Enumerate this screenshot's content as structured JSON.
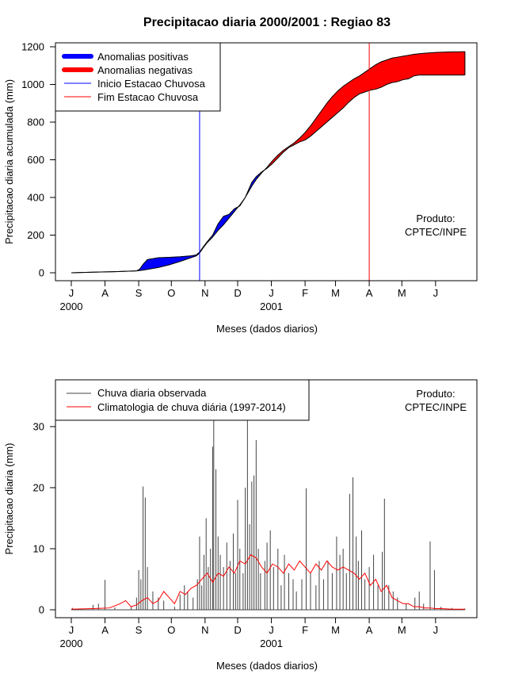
{
  "chart_data": [
    {
      "type": "area",
      "title": "Precipitacao diaria 2000/2001 : Regiao 83",
      "xlabel": "Meses (dados diarios)",
      "ylabel": "Precipitacao diaria acumulada (mm)",
      "xlim": [
        0,
        365
      ],
      "ylim": [
        0,
        1200
      ],
      "yticks": [
        0,
        200,
        400,
        600,
        800,
        1000,
        1200
      ],
      "month_ticks": [
        {
          "label": "J",
          "day": 0
        },
        {
          "label": "A",
          "day": 31
        },
        {
          "label": "S",
          "day": 62
        },
        {
          "label": "O",
          "day": 92
        },
        {
          "label": "N",
          "day": 123
        },
        {
          "label": "D",
          "day": 153
        },
        {
          "label": "J",
          "day": 184
        },
        {
          "label": "F",
          "day": 215
        },
        {
          "label": "M",
          "day": 243
        },
        {
          "label": "A",
          "day": 274
        },
        {
          "label": "M",
          "day": 304
        },
        {
          "label": "J",
          "day": 335
        }
      ],
      "year_labels": [
        {
          "label": "2000",
          "day": 0
        },
        {
          "label": "2001",
          "day": 184
        }
      ],
      "legend": [
        {
          "label": "Anomalias positivas",
          "color": "#0000ff",
          "style": "thick"
        },
        {
          "label": "Anomalias negativas",
          "color": "#ff0000",
          "style": "thick"
        },
        {
          "label": "Inicio Estacao Chuvosa",
          "color": "#0000ff",
          "style": "thin"
        },
        {
          "label": "Fim Estacao Chuvosa",
          "color": "#ff0000",
          "style": "thin"
        }
      ],
      "annotation": [
        "Produto:",
        "CPTEC/INPE"
      ],
      "rainy_season_start_day": 118,
      "rainy_season_end_day": 274,
      "observed_cumulative": {
        "days": [
          0,
          20,
          40,
          60,
          63,
          66,
          70,
          80,
          90,
          100,
          110,
          115,
          118,
          121,
          125,
          130,
          135,
          140,
          145,
          150,
          155,
          160,
          163,
          166,
          170,
          175,
          180,
          185,
          190,
          195,
          200,
          205,
          210,
          215,
          220,
          225,
          230,
          235,
          240,
          245,
          250,
          255,
          260,
          265,
          270,
          275,
          280,
          285,
          290,
          295,
          300,
          305,
          310,
          315,
          320,
          325,
          330,
          335,
          340,
          345,
          350,
          355,
          362
        ],
        "values": [
          0,
          3,
          6,
          10,
          20,
          45,
          70,
          80,
          82,
          85,
          90,
          95,
          110,
          135,
          165,
          200,
          260,
          300,
          310,
          340,
          355,
          400,
          440,
          480,
          510,
          535,
          555,
          580,
          610,
          640,
          665,
          680,
          695,
          705,
          725,
          750,
          775,
          800,
          825,
          850,
          875,
          905,
          930,
          950,
          960,
          970,
          975,
          985,
          1000,
          1010,
          1015,
          1025,
          1030,
          1045,
          1050,
          1050,
          1050,
          1050,
          1050,
          1050,
          1050,
          1050,
          1050
        ]
      },
      "climatology_cumulative": {
        "days": [
          0,
          20,
          40,
          60,
          63,
          66,
          70,
          80,
          90,
          100,
          110,
          115,
          118,
          121,
          125,
          130,
          135,
          140,
          145,
          150,
          155,
          160,
          163,
          166,
          170,
          175,
          180,
          185,
          190,
          195,
          200,
          205,
          210,
          215,
          220,
          225,
          230,
          235,
          240,
          245,
          250,
          255,
          260,
          265,
          270,
          275,
          280,
          285,
          290,
          295,
          300,
          305,
          310,
          315,
          320,
          325,
          330,
          335,
          340,
          345,
          350,
          355,
          362
        ],
        "values": [
          0,
          3,
          6,
          10,
          12,
          14,
          18,
          28,
          42,
          60,
          80,
          90,
          105,
          130,
          160,
          190,
          225,
          255,
          290,
          325,
          360,
          400,
          430,
          460,
          495,
          530,
          560,
          595,
          625,
          650,
          670,
          690,
          715,
          745,
          780,
          820,
          860,
          900,
          935,
          965,
          990,
          1010,
          1030,
          1045,
          1065,
          1085,
          1105,
          1120,
          1130,
          1140,
          1145,
          1150,
          1155,
          1160,
          1163,
          1166,
          1168,
          1170,
          1171,
          1172,
          1173,
          1173,
          1174
        ]
      }
    },
    {
      "type": "bar",
      "title": "",
      "xlabel": "Meses (dados diarios)",
      "ylabel": "Precipitacao diaria (mm)",
      "xlim": [
        0,
        365
      ],
      "ylim": [
        0,
        35
      ],
      "yticks": [
        0,
        10,
        20,
        30
      ],
      "legend": [
        {
          "label": "Chuva diaria observada",
          "color": "#444444",
          "style": "thin"
        },
        {
          "label": "Climatologia de chuva diária (1997-2014)",
          "color": "#ff0000",
          "style": "thin"
        }
      ],
      "annotation": [
        "Produto:",
        "CPTEC/INPE"
      ],
      "observed_daily_spikes": [
        {
          "day": 1,
          "value": 0.3
        },
        {
          "day": 20,
          "value": 0.8
        },
        {
          "day": 25,
          "value": 1.0
        },
        {
          "day": 31,
          "value": 4.9
        },
        {
          "day": 40,
          "value": 0.4
        },
        {
          "day": 55,
          "value": 0.5
        },
        {
          "day": 60,
          "value": 2.0
        },
        {
          "day": 62,
          "value": 6.5
        },
        {
          "day": 64,
          "value": 5.0
        },
        {
          "day": 66,
          "value": 20.2
        },
        {
          "day": 68,
          "value": 18.4
        },
        {
          "day": 70,
          "value": 7.0
        },
        {
          "day": 75,
          "value": 3.0
        },
        {
          "day": 80,
          "value": 2.0
        },
        {
          "day": 85,
          "value": 1.5
        },
        {
          "day": 95,
          "value": 0.5
        },
        {
          "day": 100,
          "value": 2.5
        },
        {
          "day": 104,
          "value": 4.0
        },
        {
          "day": 107,
          "value": 3.0
        },
        {
          "day": 112,
          "value": 2.0
        },
        {
          "day": 116,
          "value": 5.0
        },
        {
          "day": 118,
          "value": 12.0
        },
        {
          "day": 120,
          "value": 4.0
        },
        {
          "day": 122,
          "value": 9.0
        },
        {
          "day": 124,
          "value": 15.0
        },
        {
          "day": 126,
          "value": 7.0
        },
        {
          "day": 128,
          "value": 10.0
        },
        {
          "day": 130,
          "value": 26.7
        },
        {
          "day": 131,
          "value": 31.0
        },
        {
          "day": 133,
          "value": 23.0
        },
        {
          "day": 135,
          "value": 12.0
        },
        {
          "day": 137,
          "value": 9.0
        },
        {
          "day": 140,
          "value": 7.0
        },
        {
          "day": 143,
          "value": 11.0
        },
        {
          "day": 146,
          "value": 8.0
        },
        {
          "day": 149,
          "value": 12.5
        },
        {
          "day": 151,
          "value": 6.0
        },
        {
          "day": 153,
          "value": 18.0
        },
        {
          "day": 155,
          "value": 10.0
        },
        {
          "day": 158,
          "value": 6.0
        },
        {
          "day": 160,
          "value": 20.0
        },
        {
          "day": 162,
          "value": 31.0
        },
        {
          "day": 164,
          "value": 14.0
        },
        {
          "day": 166,
          "value": 21.0
        },
        {
          "day": 168,
          "value": 22.0
        },
        {
          "day": 170,
          "value": 27.8
        },
        {
          "day": 172,
          "value": 10.0
        },
        {
          "day": 174,
          "value": 6.0
        },
        {
          "day": 178,
          "value": 8.0
        },
        {
          "day": 180,
          "value": 11.0
        },
        {
          "day": 183,
          "value": 13.0
        },
        {
          "day": 186,
          "value": 7.0
        },
        {
          "day": 190,
          "value": 10.0
        },
        {
          "day": 193,
          "value": 4.0
        },
        {
          "day": 196,
          "value": 9.0
        },
        {
          "day": 200,
          "value": 6.0
        },
        {
          "day": 204,
          "value": 5.0
        },
        {
          "day": 207,
          "value": 3.0
        },
        {
          "day": 212,
          "value": 5.0
        },
        {
          "day": 216,
          "value": 19.9
        },
        {
          "day": 220,
          "value": 6.0
        },
        {
          "day": 225,
          "value": 4.0
        },
        {
          "day": 228,
          "value": 8.0
        },
        {
          "day": 232,
          "value": 5.0
        },
        {
          "day": 236,
          "value": 8.0
        },
        {
          "day": 240,
          "value": 6.0
        },
        {
          "day": 244,
          "value": 12.0
        },
        {
          "day": 247,
          "value": 9.0
        },
        {
          "day": 250,
          "value": 10.0
        },
        {
          "day": 253,
          "value": 6.0
        },
        {
          "day": 256,
          "value": 19.0
        },
        {
          "day": 259,
          "value": 21.7
        },
        {
          "day": 262,
          "value": 12.0
        },
        {
          "day": 264,
          "value": 8.0
        },
        {
          "day": 267,
          "value": 13.0
        },
        {
          "day": 270,
          "value": 5.0
        },
        {
          "day": 274,
          "value": 7.0
        },
        {
          "day": 278,
          "value": 9.0
        },
        {
          "day": 282,
          "value": 4.0
        },
        {
          "day": 286,
          "value": 9.5
        },
        {
          "day": 288,
          "value": 18.2
        },
        {
          "day": 292,
          "value": 4.0
        },
        {
          "day": 296,
          "value": 3.0
        },
        {
          "day": 300,
          "value": 2.0
        },
        {
          "day": 308,
          "value": 1.0
        },
        {
          "day": 316,
          "value": 2.0
        },
        {
          "day": 320,
          "value": 3.0
        },
        {
          "day": 324,
          "value": 1.0
        },
        {
          "day": 330,
          "value": 11.2
        },
        {
          "day": 334,
          "value": 6.5
        },
        {
          "day": 340,
          "value": 0.5
        },
        {
          "day": 350,
          "value": 0.3
        },
        {
          "day": 362,
          "value": 0.2
        }
      ],
      "climatology_daily": {
        "days": [
          0,
          20,
          35,
          45,
          50,
          55,
          60,
          65,
          70,
          75,
          80,
          85,
          90,
          95,
          100,
          105,
          110,
          115,
          120,
          125,
          130,
          135,
          140,
          145,
          150,
          155,
          160,
          165,
          170,
          175,
          180,
          185,
          190,
          195,
          200,
          205,
          210,
          215,
          220,
          225,
          230,
          235,
          240,
          245,
          250,
          255,
          260,
          265,
          270,
          275,
          280,
          285,
          290,
          295,
          300,
          305,
          310,
          315,
          320,
          325,
          330,
          335,
          340,
          350,
          362
        ],
        "values": [
          0.1,
          0.2,
          0.3,
          1.0,
          1.5,
          0.5,
          0.8,
          1.5,
          2.0,
          1.0,
          1.5,
          3.0,
          2.0,
          1.0,
          3.0,
          2.5,
          3.5,
          4.0,
          5.0,
          6.0,
          4.5,
          6.0,
          5.5,
          7.0,
          6.0,
          8.0,
          7.5,
          9.0,
          8.5,
          7.0,
          6.0,
          7.5,
          7.0,
          6.0,
          7.5,
          6.5,
          8.0,
          7.0,
          6.0,
          7.5,
          6.5,
          8.0,
          7.0,
          6.5,
          7.0,
          6.5,
          6.0,
          5.0,
          6.0,
          4.0,
          5.0,
          3.0,
          4.0,
          2.0,
          1.5,
          1.0,
          1.0,
          0.5,
          0.5,
          0.3,
          0.3,
          0.2,
          0.2,
          0.1,
          0.1
        ]
      }
    }
  ]
}
